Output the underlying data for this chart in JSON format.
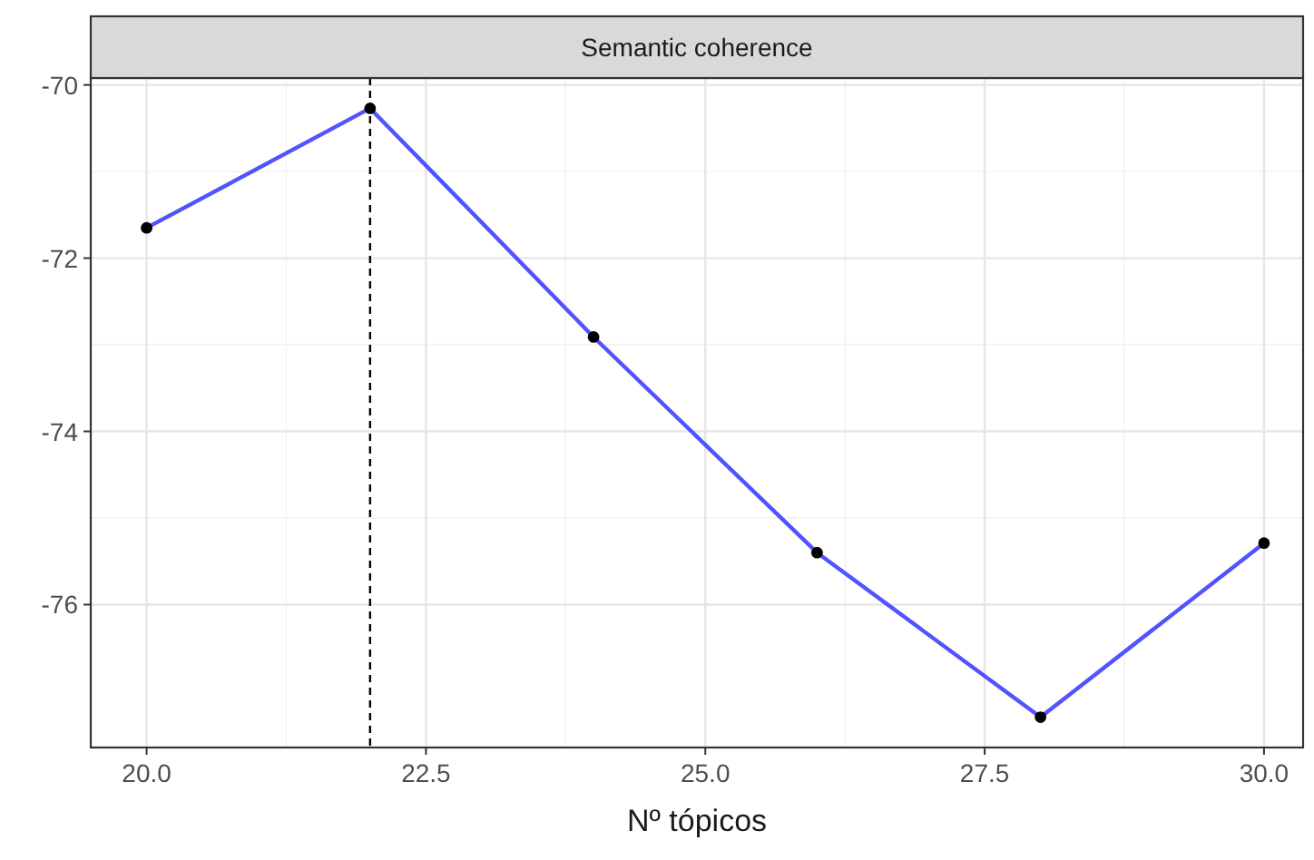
{
  "chart_data": {
    "type": "line",
    "title": "Semantic coherence",
    "xlabel": "Nº tópicos",
    "x": [
      20,
      22,
      24,
      26,
      28,
      30
    ],
    "series": [
      {
        "color": "#5252ff",
        "values": [
          -71.65,
          -70.27,
          -72.91,
          -75.4,
          -77.3,
          -75.29
        ]
      }
    ],
    "xlim": [
      19.5,
      30.35
    ],
    "xticks": [
      {
        "value": 20,
        "label": "20.0"
      },
      {
        "value": 22.5,
        "label": "22.5"
      },
      {
        "value": 25,
        "label": "25.0"
      },
      {
        "value": 27.5,
        "label": "27.5"
      },
      {
        "value": 30,
        "label": "30.0"
      }
    ],
    "ylim": [
      -77.65,
      -69.92
    ],
    "yticks": [
      -76,
      -74,
      -72,
      -70
    ],
    "grid": true,
    "marker": "circle",
    "line_style": "solid",
    "ref_lines": [
      {
        "axis": "x",
        "value": 22,
        "color": "#000000",
        "line_style": "dashed"
      }
    ]
  }
}
